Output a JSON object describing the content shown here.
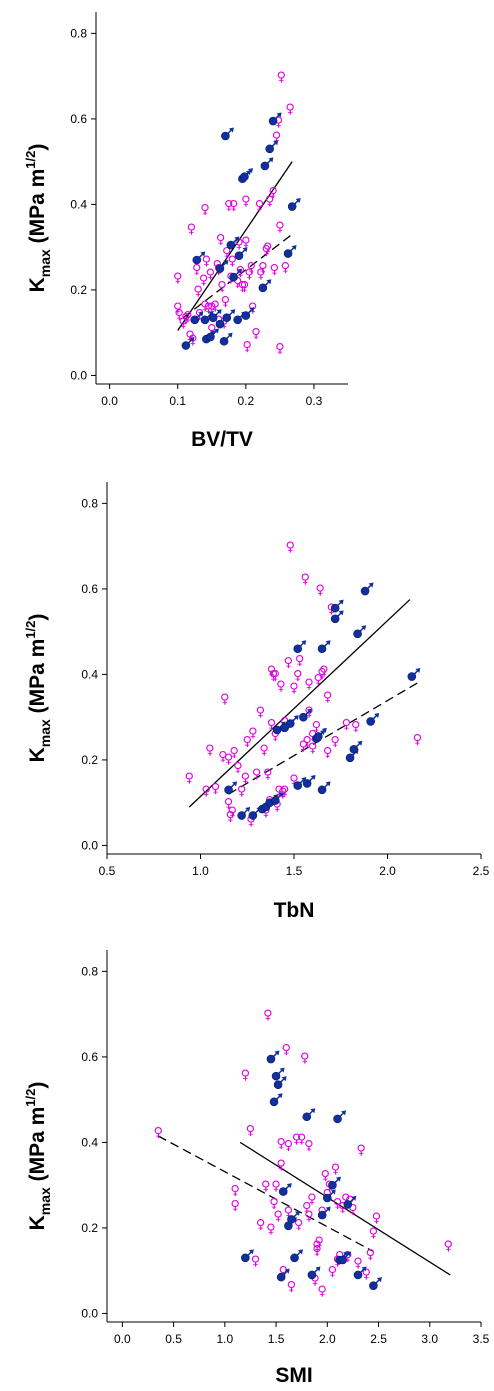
{
  "colors": {
    "female": "#e000e0",
    "male": "#1030a0",
    "axis": "#000000"
  },
  "symbols": {
    "female": "♀",
    "male": "♂",
    "female_icon": "female-symbol-icon",
    "male_icon": "male-symbol-icon"
  },
  "chart_data": [
    {
      "type": "scatter",
      "title": "",
      "xlabel": "BV/TV",
      "ylabel": {
        "main": "K",
        "sub": "max",
        "unit": " (MPa m",
        "sup": "1/2",
        "close": ")"
      },
      "xlim": [
        -0.02,
        0.35
      ],
      "ylim": [
        -0.02,
        0.85
      ],
      "xticks": [
        0.0,
        0.1,
        0.2,
        0.3
      ],
      "xtick_labels": [
        "0.0",
        "0.1",
        "0.2",
        "0.3"
      ],
      "yticks": [
        0.0,
        0.2,
        0.4,
        0.6,
        0.8
      ],
      "ytick_labels": [
        "0.0",
        "0.2",
        "0.4",
        "0.6",
        "0.8"
      ],
      "series": [
        {
          "sex": "female",
          "x": [
            0.1,
            0.1,
            0.102,
            0.108,
            0.112,
            0.115,
            0.118,
            0.12,
            0.122,
            0.128,
            0.13,
            0.132,
            0.138,
            0.14,
            0.14,
            0.142,
            0.145,
            0.148,
            0.15,
            0.15,
            0.155,
            0.158,
            0.16,
            0.16,
            0.163,
            0.165,
            0.168,
            0.17,
            0.172,
            0.175,
            0.178,
            0.18,
            0.182,
            0.188,
            0.19,
            0.192,
            0.195,
            0.198,
            0.2,
            0.2,
            0.202,
            0.205,
            0.208,
            0.21,
            0.215,
            0.22,
            0.222,
            0.225,
            0.23,
            0.232,
            0.235,
            0.24,
            0.242,
            0.245,
            0.248,
            0.25,
            0.25,
            0.252,
            0.258,
            0.265
          ],
          "y": [
            0.23,
            0.16,
            0.145,
            0.125,
            0.135,
            0.14,
            0.095,
            0.345,
            0.085,
            0.25,
            0.2,
            0.145,
            0.225,
            0.165,
            0.39,
            0.27,
            0.16,
            0.24,
            0.16,
            0.11,
            0.165,
            0.26,
            0.25,
            0.13,
            0.32,
            0.21,
            0.125,
            0.175,
            0.29,
            0.4,
            0.23,
            0.27,
            0.4,
            0.22,
            0.31,
            0.245,
            0.21,
            0.21,
            0.315,
            0.41,
            0.07,
            0.24,
            0.255,
            0.16,
            0.1,
            0.4,
            0.24,
            0.255,
            0.295,
            0.3,
            0.41,
            0.43,
            0.25,
            0.56,
            0.595,
            0.065,
            0.35,
            0.7,
            0.255,
            0.625
          ]
        },
        {
          "sex": "male",
          "x": [
            0.112,
            0.125,
            0.128,
            0.14,
            0.142,
            0.148,
            0.152,
            0.162,
            0.162,
            0.168,
            0.17,
            0.172,
            0.178,
            0.182,
            0.188,
            0.19,
            0.195,
            0.198,
            0.2,
            0.225,
            0.228,
            0.235,
            0.24,
            0.262,
            0.268
          ],
          "y": [
            0.07,
            0.13,
            0.27,
            0.13,
            0.085,
            0.09,
            0.135,
            0.12,
            0.25,
            0.08,
            0.56,
            0.135,
            0.305,
            0.23,
            0.13,
            0.28,
            0.46,
            0.465,
            0.14,
            0.205,
            0.49,
            0.53,
            0.595,
            0.285,
            0.395
          ]
        }
      ],
      "fits": [
        {
          "style": "solid",
          "x": [
            0.1,
            0.268
          ],
          "y": [
            0.105,
            0.5
          ]
        },
        {
          "style": "dashed",
          "x": [
            0.108,
            0.268
          ],
          "y": [
            0.135,
            0.33
          ]
        }
      ]
    },
    {
      "type": "scatter",
      "title": "",
      "xlabel": "TbN",
      "ylabel": {
        "main": "K",
        "sub": "max",
        "unit": " (MPa m",
        "sup": "1/2",
        "close": ")"
      },
      "xlim": [
        0.5,
        2.5
      ],
      "ylim": [
        -0.02,
        0.85
      ],
      "xticks": [
        0.5,
        1.0,
        1.5,
        2.0,
        2.5
      ],
      "xtick_labels": [
        "0.5",
        "1.0",
        "1.5",
        "2.0",
        "2.5"
      ],
      "yticks": [
        0.0,
        0.2,
        0.4,
        0.6,
        0.8
      ],
      "ytick_labels": [
        "0.0",
        "0.2",
        "0.4",
        "0.6",
        "0.8"
      ],
      "series": [
        {
          "sex": "female",
          "x": [
            0.94,
            1.03,
            1.05,
            1.08,
            1.12,
            1.13,
            1.15,
            1.15,
            1.16,
            1.17,
            1.18,
            1.2,
            1.22,
            1.24,
            1.25,
            1.27,
            1.28,
            1.3,
            1.32,
            1.34,
            1.35,
            1.36,
            1.37,
            1.38,
            1.38,
            1.39,
            1.4,
            1.4,
            1.41,
            1.42,
            1.43,
            1.44,
            1.45,
            1.45,
            1.47,
            1.48,
            1.5,
            1.5,
            1.52,
            1.53,
            1.55,
            1.56,
            1.57,
            1.58,
            1.58,
            1.6,
            1.6,
            1.62,
            1.63,
            1.64,
            1.65,
            1.66,
            1.68,
            1.68,
            1.7,
            1.72,
            1.78,
            1.83,
            2.16
          ],
          "y": [
            0.16,
            0.13,
            0.225,
            0.135,
            0.21,
            0.345,
            0.205,
            0.1,
            0.07,
            0.08,
            0.22,
            0.185,
            0.13,
            0.16,
            0.245,
            0.06,
            0.265,
            0.17,
            0.315,
            0.225,
            0.08,
            0.17,
            0.105,
            0.285,
            0.41,
            0.4,
            0.26,
            0.4,
            0.095,
            0.13,
            0.375,
            0.125,
            0.13,
            0.29,
            0.43,
            0.7,
            0.37,
            0.155,
            0.4,
            0.435,
            0.235,
            0.625,
            0.245,
            0.315,
            0.38,
            0.23,
            0.26,
            0.28,
            0.39,
            0.6,
            0.405,
            0.41,
            0.22,
            0.35,
            0.555,
            0.245,
            0.285,
            0.28,
            0.25
          ]
        },
        {
          "sex": "male",
          "x": [
            1.15,
            1.22,
            1.28,
            1.33,
            1.35,
            1.37,
            1.4,
            1.41,
            1.45,
            1.48,
            1.52,
            1.52,
            1.55,
            1.57,
            1.62,
            1.63,
            1.65,
            1.65,
            1.72,
            1.72,
            1.8,
            1.82,
            1.84,
            1.88,
            1.91,
            2.13
          ],
          "y": [
            0.13,
            0.07,
            0.07,
            0.085,
            0.09,
            0.1,
            0.105,
            0.27,
            0.275,
            0.285,
            0.14,
            0.46,
            0.3,
            0.145,
            0.25,
            0.255,
            0.46,
            0.13,
            0.53,
            0.555,
            0.205,
            0.225,
            0.495,
            0.595,
            0.29,
            0.395
          ]
        }
      ],
      "fits": [
        {
          "style": "solid",
          "x": [
            0.94,
            2.12
          ],
          "y": [
            0.09,
            0.575
          ]
        },
        {
          "style": "dashed",
          "x": [
            1.15,
            2.16
          ],
          "y": [
            0.12,
            0.38
          ]
        }
      ]
    },
    {
      "type": "scatter",
      "title": "",
      "xlabel": "SMI",
      "ylabel": {
        "main": "K",
        "sub": "max",
        "unit": " (MPa m",
        "sup": "1/2",
        "close": ")"
      },
      "xlim": [
        -0.15,
        3.5
      ],
      "ylim": [
        -0.02,
        0.85
      ],
      "xticks": [
        0.0,
        0.5,
        1.0,
        1.5,
        2.0,
        2.5,
        3.0,
        3.5
      ],
      "xtick_labels": [
        "0.0",
        "0.5",
        "1.0",
        "1.5",
        "2.0",
        "2.5",
        "3.0",
        "3.5"
      ],
      "yticks": [
        0.0,
        0.2,
        0.4,
        0.6,
        0.8
      ],
      "ytick_labels": [
        "0.0",
        "0.2",
        "0.4",
        "0.6",
        "0.8"
      ],
      "series": [
        {
          "sex": "female",
          "x": [
            0.35,
            1.1,
            1.1,
            1.2,
            1.25,
            1.3,
            1.35,
            1.4,
            1.42,
            1.45,
            1.48,
            1.5,
            1.52,
            1.55,
            1.55,
            1.57,
            1.6,
            1.62,
            1.62,
            1.65,
            1.7,
            1.72,
            1.75,
            1.78,
            1.8,
            1.82,
            1.82,
            1.85,
            1.88,
            1.9,
            1.9,
            1.92,
            1.95,
            1.95,
            1.98,
            2.0,
            2.02,
            2.05,
            2.08,
            2.1,
            2.1,
            2.12,
            2.15,
            2.18,
            2.2,
            2.22,
            2.25,
            2.3,
            2.33,
            2.38,
            2.42,
            2.45,
            2.48,
            3.18
          ],
          "y": [
            0.425,
            0.29,
            0.255,
            0.56,
            0.43,
            0.125,
            0.21,
            0.3,
            0.7,
            0.2,
            0.26,
            0.3,
            0.23,
            0.4,
            0.35,
            0.1,
            0.62,
            0.24,
            0.395,
            0.065,
            0.41,
            0.21,
            0.41,
            0.6,
            0.25,
            0.23,
            0.395,
            0.27,
            0.08,
            0.15,
            0.16,
            0.17,
            0.24,
            0.055,
            0.325,
            0.28,
            0.3,
            0.1,
            0.34,
            0.26,
            0.125,
            0.135,
            0.25,
            0.27,
            0.135,
            0.265,
            0.245,
            0.12,
            0.385,
            0.095,
            0.14,
            0.19,
            0.225,
            0.16
          ]
        },
        {
          "sex": "male",
          "x": [
            1.2,
            1.45,
            1.48,
            1.5,
            1.52,
            1.55,
            1.57,
            1.62,
            1.65,
            1.68,
            1.8,
            1.85,
            1.95,
            2.0,
            2.05,
            2.1,
            2.12,
            2.15,
            2.2,
            2.3,
            2.45
          ],
          "y": [
            0.13,
            0.595,
            0.495,
            0.555,
            0.535,
            0.085,
            0.285,
            0.205,
            0.22,
            0.13,
            0.46,
            0.09,
            0.23,
            0.27,
            0.3,
            0.455,
            0.125,
            0.125,
            0.255,
            0.09,
            0.065
          ]
        }
      ],
      "fits": [
        {
          "style": "solid",
          "x": [
            1.15,
            3.2
          ],
          "y": [
            0.4,
            0.09
          ]
        },
        {
          "style": "dashed",
          "x": [
            0.35,
            2.45
          ],
          "y": [
            0.415,
            0.145
          ]
        }
      ]
    }
  ]
}
